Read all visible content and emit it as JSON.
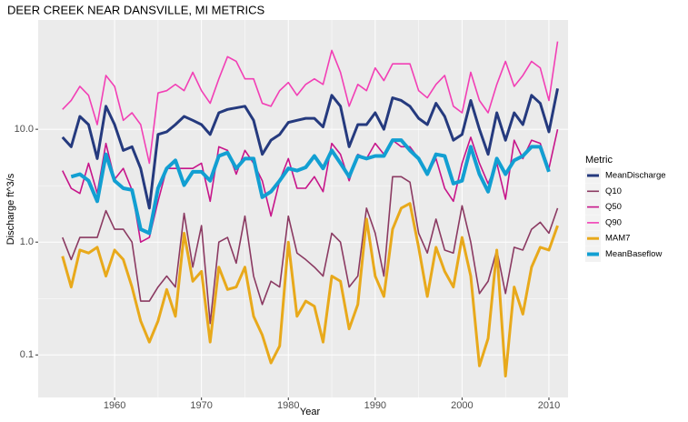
{
  "chart_data": {
    "type": "line",
    "title": "DEER CREEK NEAR DANSVILLE, MI  METRICS",
    "x_label": "Year",
    "y_label": "Discharge ft^3/s",
    "legend_title": "Metric",
    "legend_position": "right",
    "log_y": true,
    "grid": true,
    "x": [
      1954,
      1955,
      1956,
      1957,
      1958,
      1959,
      1960,
      1961,
      1962,
      1963,
      1964,
      1965,
      1966,
      1967,
      1968,
      1969,
      1970,
      1971,
      1972,
      1973,
      1974,
      1975,
      1976,
      1977,
      1978,
      1979,
      1980,
      1981,
      1982,
      1983,
      1984,
      1985,
      1986,
      1987,
      1988,
      1989,
      1990,
      1991,
      1992,
      1993,
      1994,
      1995,
      1996,
      1997,
      1998,
      1999,
      2000,
      2001,
      2002,
      2003,
      2004,
      2005,
      2006,
      2007,
      2008,
      2009,
      2010,
      2011
    ],
    "xlim": [
      1951.2,
      2012.2
    ],
    "xticks": [
      1960,
      1970,
      1980,
      1990,
      2000,
      2010
    ],
    "ylim": [
      0.042,
      93
    ],
    "yticks": [
      0.1,
      {
        "value": 1,
        "label": "1.0"
      },
      {
        "value": 10,
        "label": "10.0"
      }
    ],
    "series": [
      {
        "name": "MeanDischarge",
        "color": "#253a7e",
        "width": 3,
        "values": [
          8.5,
          7,
          13,
          11,
          5.5,
          16,
          11,
          6.5,
          7,
          4.5,
          2.0,
          9,
          9.5,
          11,
          13,
          12,
          11,
          9,
          14,
          15,
          15.5,
          16,
          12,
          6,
          8,
          9,
          11.5,
          12,
          12.5,
          12.5,
          10.5,
          20,
          16,
          7,
          11,
          11,
          14,
          10,
          19,
          18,
          16,
          12.5,
          11,
          17,
          13,
          8,
          9,
          18,
          10,
          6,
          14,
          8,
          14,
          11,
          20,
          17,
          9.5,
          23
        ]
      },
      {
        "name": "Q10",
        "color": "#8b3a62",
        "width": 1.6,
        "values": [
          1.1,
          0.7,
          1.1,
          1.1,
          1.1,
          1.9,
          1.3,
          1.3,
          1.0,
          0.3,
          0.3,
          0.4,
          0.5,
          0.4,
          1.8,
          0.6,
          1.4,
          0.19,
          1.0,
          1.1,
          0.65,
          1.7,
          0.5,
          0.28,
          0.45,
          0.4,
          1.7,
          0.8,
          0.7,
          0.6,
          0.5,
          1.2,
          1.0,
          0.4,
          0.5,
          2.0,
          1.2,
          0.5,
          3.8,
          3.8,
          3.4,
          1.2,
          0.8,
          1.6,
          0.85,
          0.8,
          2.1,
          1.0,
          0.35,
          0.45,
          0.85,
          0.35,
          0.9,
          0.85,
          1.3,
          1.5,
          1.2,
          2.0
        ]
      },
      {
        "name": "Q50",
        "color": "#c7158a",
        "width": 1.6,
        "values": [
          4.3,
          3.0,
          2.7,
          5,
          2.7,
          7.5,
          3.6,
          4.5,
          2.9,
          1.0,
          1.1,
          2.3,
          4.5,
          4.5,
          4.5,
          4.5,
          5,
          2.3,
          7,
          6.5,
          4,
          6.5,
          5,
          3.5,
          1.7,
          3.5,
          5.5,
          3,
          3,
          3.8,
          2.8,
          7.5,
          6,
          3.5,
          6,
          5.5,
          7.5,
          6,
          8,
          7,
          7,
          5.5,
          4,
          5.5,
          3,
          2.3,
          5,
          8.5,
          5,
          3.3,
          5,
          2.4,
          8,
          5.5,
          8,
          7.5,
          4.5,
          10
        ]
      },
      {
        "name": "Q90",
        "color": "#f23fb5",
        "width": 1.6,
        "values": [
          15,
          18,
          24,
          20,
          11,
          30,
          24,
          12,
          14,
          11,
          5,
          21,
          22,
          25,
          22,
          32,
          22,
          17,
          28,
          44,
          40,
          28,
          28,
          17,
          16,
          22,
          26,
          20,
          25,
          28,
          25,
          50,
          32,
          16,
          25,
          22,
          35,
          27,
          38,
          38,
          38,
          22,
          19,
          25,
          30,
          16,
          14,
          32,
          18,
          14,
          25,
          40,
          24,
          30,
          40,
          35,
          18,
          60
        ]
      },
      {
        "name": "MAM7",
        "color": "#e8a91b",
        "width": 3,
        "values": [
          0.75,
          0.4,
          0.85,
          0.8,
          0.9,
          0.5,
          0.85,
          0.7,
          0.4,
          0.2,
          0.13,
          0.2,
          0.38,
          0.22,
          1.2,
          0.45,
          0.55,
          0.13,
          0.6,
          0.38,
          0.4,
          0.6,
          0.22,
          0.15,
          0.085,
          0.12,
          1.0,
          0.22,
          0.3,
          0.27,
          0.13,
          0.5,
          0.45,
          0.17,
          0.28,
          1.6,
          0.5,
          0.33,
          1.3,
          2.0,
          2.2,
          0.9,
          0.33,
          0.9,
          0.55,
          0.4,
          1.1,
          0.5,
          0.08,
          0.14,
          0.85,
          0.065,
          0.4,
          0.23,
          0.6,
          0.9,
          0.85,
          1.4
        ]
      },
      {
        "name": "MeanBaseflow",
        "color": "#129fd2",
        "width": 4,
        "values": [
          null,
          3.8,
          4.0,
          3.5,
          2.3,
          6.0,
          3.5,
          3.0,
          2.9,
          1.3,
          1.2,
          3.0,
          4.5,
          5.3,
          3.2,
          4.2,
          4.2,
          3.5,
          5.8,
          6.2,
          4.5,
          5.5,
          5.5,
          2.5,
          2.8,
          3.5,
          4.5,
          4.3,
          4.6,
          5.8,
          4.5,
          6.5,
          5,
          3.8,
          5.8,
          5.5,
          5.8,
          5.8,
          8,
          8,
          6.5,
          5.5,
          4,
          6,
          5.8,
          3.3,
          3.5,
          7,
          4,
          2.8,
          5.5,
          4,
          5.3,
          5.8,
          7,
          7,
          4.2,
          null
        ]
      }
    ]
  }
}
